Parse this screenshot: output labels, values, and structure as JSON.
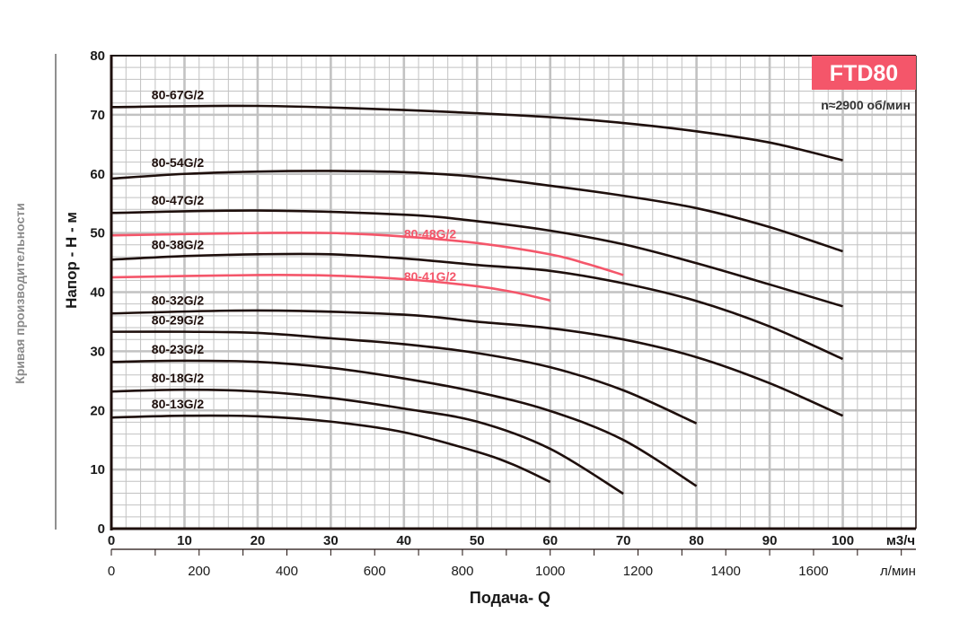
{
  "chart_data": {
    "type": "line",
    "title": "FTD80",
    "subtitle": "n≈2900 об/мин",
    "side_label": "Кривая производительности",
    "ylabel": "Напор - H - м",
    "xlabel": "Подача- Q",
    "x_unit": "м3/ч",
    "x2_unit": "л/мин",
    "xlim": [
      0,
      110
    ],
    "ylim": [
      0,
      80
    ],
    "x_ticks": [
      0,
      10,
      20,
      30,
      40,
      50,
      60,
      70,
      80,
      90,
      100
    ],
    "x2_ticks": [
      0,
      200,
      400,
      600,
      800,
      1000,
      1200,
      1400,
      1600
    ],
    "y_ticks": [
      0,
      10,
      20,
      30,
      40,
      50,
      60,
      70,
      80
    ],
    "grid": true,
    "colors": {
      "black": "#1e0f0c",
      "red": "#f4566a",
      "grid": "#c2c2c2"
    },
    "series": [
      {
        "name": "80-67G/2",
        "color": "black",
        "points": [
          [
            0,
            71.3
          ],
          [
            20,
            71.5
          ],
          [
            40,
            70.8
          ],
          [
            60,
            69.6
          ],
          [
            70,
            68.6
          ],
          [
            80,
            67.2
          ],
          [
            90,
            65.3
          ],
          [
            100,
            62.3
          ]
        ]
      },
      {
        "name": "80-54G/2",
        "color": "black",
        "points": [
          [
            0,
            59.2
          ],
          [
            10,
            60.0
          ],
          [
            20,
            60.4
          ],
          [
            30,
            60.5
          ],
          [
            40,
            60.3
          ],
          [
            50,
            59.5
          ],
          [
            60,
            58.0
          ],
          [
            70,
            56.3
          ],
          [
            80,
            54.2
          ],
          [
            90,
            51.0
          ],
          [
            100,
            46.9
          ]
        ]
      },
      {
        "name": "80-47G/2",
        "color": "black",
        "points": [
          [
            0,
            53.4
          ],
          [
            20,
            53.8
          ],
          [
            40,
            53.1
          ],
          [
            50,
            52.0
          ],
          [
            60,
            50.4
          ],
          [
            70,
            48.1
          ],
          [
            80,
            44.9
          ],
          [
            90,
            41.3
          ],
          [
            100,
            37.6
          ]
        ]
      },
      {
        "name": "80-48G/2",
        "color": "red",
        "points": [
          [
            0,
            49.6
          ],
          [
            20,
            50.0
          ],
          [
            30,
            50.0
          ],
          [
            40,
            49.4
          ],
          [
            50,
            48.3
          ],
          [
            60,
            46.4
          ],
          [
            65,
            44.8
          ],
          [
            70,
            42.9
          ]
        ]
      },
      {
        "name": "80-38G/2",
        "color": "black",
        "points": [
          [
            0,
            45.5
          ],
          [
            10,
            46.1
          ],
          [
            20,
            46.4
          ],
          [
            30,
            46.4
          ],
          [
            40,
            45.7
          ],
          [
            50,
            44.6
          ],
          [
            60,
            43.6
          ],
          [
            70,
            41.5
          ],
          [
            80,
            38.5
          ],
          [
            90,
            34.2
          ],
          [
            100,
            28.7
          ]
        ]
      },
      {
        "name": "80-41G/2",
        "color": "red",
        "points": [
          [
            0,
            42.5
          ],
          [
            20,
            42.9
          ],
          [
            30,
            42.8
          ],
          [
            40,
            42.2
          ],
          [
            50,
            41.0
          ],
          [
            55,
            40.0
          ],
          [
            60,
            38.6
          ]
        ]
      },
      {
        "name": "80-32G/2",
        "color": "black",
        "points": [
          [
            0,
            36.4
          ],
          [
            20,
            36.9
          ],
          [
            40,
            36.2
          ],
          [
            50,
            35.0
          ],
          [
            60,
            33.9
          ],
          [
            70,
            32.0
          ],
          [
            80,
            29.0
          ],
          [
            90,
            24.6
          ],
          [
            100,
            19.1
          ]
        ]
      },
      {
        "name": "80-29G/2",
        "color": "black",
        "points": [
          [
            0,
            33.3
          ],
          [
            10,
            33.3
          ],
          [
            20,
            33.1
          ],
          [
            30,
            32.2
          ],
          [
            40,
            31.2
          ],
          [
            50,
            29.7
          ],
          [
            60,
            27.3
          ],
          [
            70,
            23.4
          ],
          [
            80,
            17.8
          ]
        ]
      },
      {
        "name": "80-23G/2",
        "color": "black",
        "points": [
          [
            0,
            28.2
          ],
          [
            10,
            28.4
          ],
          [
            20,
            28.2
          ],
          [
            30,
            27.2
          ],
          [
            40,
            25.4
          ],
          [
            50,
            23.1
          ],
          [
            60,
            19.9
          ],
          [
            70,
            15.0
          ],
          [
            80,
            7.2
          ]
        ]
      },
      {
        "name": "80-18G/2",
        "color": "black",
        "points": [
          [
            0,
            23.2
          ],
          [
            10,
            23.5
          ],
          [
            20,
            23.2
          ],
          [
            30,
            22.1
          ],
          [
            40,
            20.3
          ],
          [
            50,
            18.1
          ],
          [
            60,
            13.5
          ],
          [
            70,
            5.9
          ]
        ]
      },
      {
        "name": "80-13G/2",
        "color": "black",
        "points": [
          [
            0,
            18.8
          ],
          [
            10,
            19.1
          ],
          [
            20,
            19.0
          ],
          [
            30,
            18.1
          ],
          [
            40,
            16.3
          ],
          [
            50,
            13.0
          ],
          [
            55,
            10.8
          ],
          [
            60,
            7.9
          ]
        ]
      }
    ]
  }
}
